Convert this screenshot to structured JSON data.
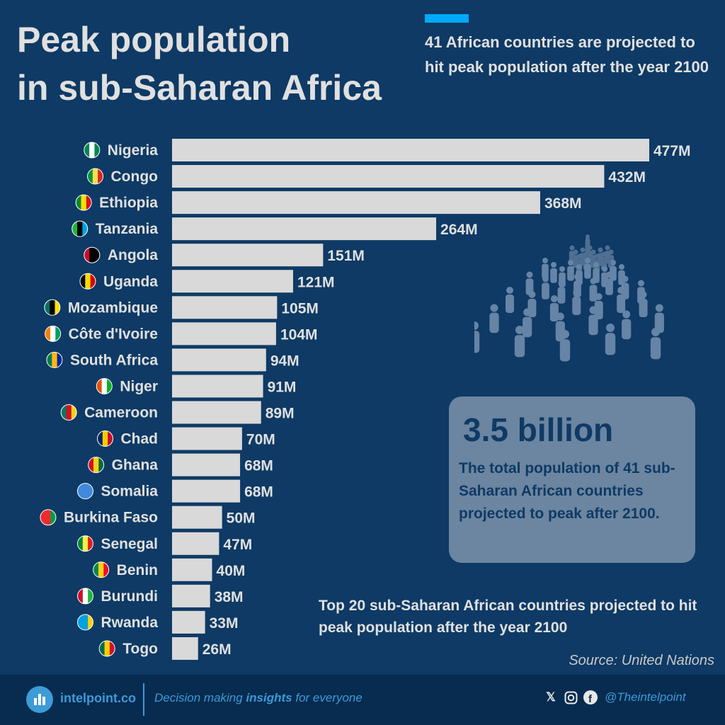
{
  "header": {
    "title_line1": "Peak population",
    "title_line2": "in sub-Saharan Africa",
    "subtitle": "41 African countries are projected to hit peak population after the year 2100"
  },
  "chart_data": {
    "type": "bar",
    "orientation": "horizontal",
    "categories": [
      "Nigeria",
      "Congo",
      "Ethiopia",
      "Tanzania",
      "Angola",
      "Uganda",
      "Mozambique",
      "Côte d'Ivoire",
      "South Africa",
      "Niger",
      "Cameroon",
      "Chad",
      "Ghana",
      "Somalia",
      "Burkina Faso",
      "Senegal",
      "Benin",
      "Burundi",
      "Rwanda",
      "Togo"
    ],
    "values": [
      477,
      432,
      368,
      264,
      151,
      121,
      105,
      104,
      94,
      91,
      89,
      70,
      68,
      68,
      50,
      47,
      40,
      38,
      33,
      26
    ],
    "value_labels": [
      "477M",
      "432M",
      "368M",
      "264M",
      "151M",
      "121M",
      "105M",
      "104M",
      "94M",
      "91M",
      "89M",
      "70M",
      "68M",
      "68M",
      "50M",
      "47M",
      "40M",
      "38M",
      "33M",
      "26M"
    ],
    "unit": "M",
    "bar_color": "#d9d9d9",
    "flag_colors": [
      [
        "#008751",
        "#ffffff",
        "#008751"
      ],
      [
        "#009543",
        "#fbde4a",
        "#dc241f"
      ],
      [
        "#078930",
        "#fcdd09",
        "#da121a"
      ],
      [
        "#1eb53a",
        "#000000",
        "#00a3dd"
      ],
      [
        "#cc092f",
        "#000000",
        "#000000"
      ],
      [
        "#000000",
        "#fcdc04",
        "#d90000"
      ],
      [
        "#007168",
        "#000000",
        "#fce100"
      ],
      [
        "#f77f00",
        "#ffffff",
        "#009e60"
      ],
      [
        "#007a4d",
        "#ffb612",
        "#002395"
      ],
      [
        "#e05206",
        "#ffffff",
        "#0db02b"
      ],
      [
        "#007a5e",
        "#ce1126",
        "#fcd116"
      ],
      [
        "#002664",
        "#fecb00",
        "#c60c30"
      ],
      [
        "#ce1126",
        "#fcd116",
        "#006b3f"
      ],
      [
        "#4189dd",
        "#4189dd",
        "#4189dd"
      ],
      [
        "#ef2b2d",
        "#ef2b2d",
        "#009e49"
      ],
      [
        "#00853f",
        "#fdef42",
        "#e31b23"
      ],
      [
        "#008751",
        "#fcd116",
        "#e8112d"
      ],
      [
        "#ce1126",
        "#ffffff",
        "#1eb53a"
      ],
      [
        "#00a1de",
        "#00a1de",
        "#fad201"
      ],
      [
        "#006a4e",
        "#ffce00",
        "#d21034"
      ]
    ]
  },
  "stat": {
    "value": "3.5 billion",
    "description": "The total population of 41 sub-Saharan African countries projected to peak after 2100."
  },
  "note": "Top 20 sub-Saharan African countries projected to hit peak population after the year 2100",
  "source": "Source: United Nations",
  "footer": {
    "brand": "intelpoint.co",
    "tagline_pre": "Decision making ",
    "tagline_bold": "insights",
    "tagline_post": " for everyone",
    "handle": "@Theintelpoint",
    "icons": [
      "x-icon",
      "instagram-icon",
      "facebook-icon"
    ]
  }
}
